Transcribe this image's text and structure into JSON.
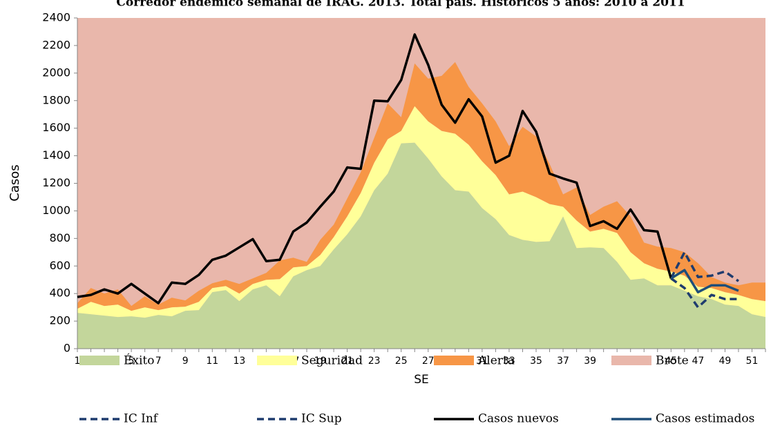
{
  "chart_data": {
    "type": "stacked-area-line",
    "title": "Corredor endémico semanal de IRAG. 2013. Total país. Históricos 5 años: 2010 a 2011",
    "x_label": "SE",
    "y_label": "Casos",
    "categories": [
      1,
      null,
      3,
      null,
      5,
      null,
      7,
      null,
      9,
      null,
      11,
      null,
      13,
      null,
      15,
      null,
      17,
      null,
      19,
      null,
      21,
      null,
      23,
      null,
      25,
      null,
      27,
      null,
      29,
      null,
      31,
      null,
      33,
      null,
      35,
      null,
      37,
      null,
      39,
      null,
      41,
      null,
      43,
      null,
      45,
      null,
      47,
      null,
      49,
      null,
      51,
      null
    ],
    "ylim": [
      0,
      2400
    ],
    "yticks": [
      0,
      200,
      400,
      600,
      800,
      1000,
      1200,
      1400,
      1600,
      1800,
      2000,
      2200,
      2400
    ],
    "areas": [
      {
        "name": "Éxito",
        "color": "#c3d69b",
        "values": [
          260,
          250,
          240,
          230,
          235,
          225,
          245,
          235,
          275,
          280,
          410,
          425,
          345,
          430,
          460,
          380,
          525,
          570,
          600,
          720,
          830,
          960,
          1150,
          1270,
          1490,
          1495,
          1380,
          1250,
          1150,
          1140,
          1020,
          940,
          825,
          790,
          775,
          780,
          960,
          730,
          735,
          730,
          630,
          500,
          510,
          460,
          460,
          420,
          380,
          360,
          320,
          310,
          250,
          230
        ]
      },
      {
        "name": "Seguridad",
        "color": "#ffff99",
        "values": [
          30,
          90,
          70,
          90,
          40,
          75,
          35,
          65,
          30,
          60,
          30,
          30,
          55,
          40,
          40,
          125,
          65,
          30,
          80,
          90,
          130,
          170,
          200,
          250,
          90,
          265,
          270,
          330,
          410,
          340,
          340,
          320,
          295,
          350,
          325,
          270,
          70,
          200,
          115,
          140,
          210,
          200,
          110,
          120,
          100,
          110,
          70,
          80,
          90,
          80,
          110,
          115
        ]
      },
      {
        "name": "Alerta",
        "color": "#f79646",
        "values": [
          40,
          100,
          90,
          110,
          35,
          80,
          40,
          70,
          45,
          80,
          35,
          45,
          70,
          40,
          50,
          135,
          70,
          30,
          110,
          90,
          130,
          150,
          180,
          260,
          100,
          310,
          310,
          400,
          520,
          420,
          420,
          390,
          350,
          470,
          440,
          290,
          90,
          240,
          120,
          160,
          230,
          260,
          150,
          160,
          170,
          170,
          170,
          80,
          70,
          70,
          120,
          135
        ]
      },
      {
        "name": "Brote",
        "color": "#e9b7ab"
      }
    ],
    "series": [
      {
        "name": "IC Inf",
        "color": "#1f3c6e",
        "dash": true,
        "values": [
          null,
          null,
          null,
          null,
          null,
          null,
          null,
          null,
          null,
          null,
          null,
          null,
          null,
          null,
          null,
          null,
          null,
          null,
          null,
          null,
          null,
          null,
          null,
          null,
          null,
          null,
          null,
          null,
          null,
          null,
          null,
          null,
          null,
          null,
          null,
          null,
          null,
          null,
          null,
          null,
          null,
          null,
          null,
          null,
          510,
          440,
          300,
          390,
          360,
          360,
          null,
          null
        ]
      },
      {
        "name": "IC Sup",
        "color": "#1f3c6e",
        "dash": true,
        "values": [
          null,
          null,
          null,
          null,
          null,
          null,
          null,
          null,
          null,
          null,
          null,
          null,
          null,
          null,
          null,
          null,
          null,
          null,
          null,
          null,
          null,
          null,
          null,
          null,
          null,
          null,
          null,
          null,
          null,
          null,
          null,
          null,
          null,
          null,
          null,
          null,
          null,
          null,
          null,
          null,
          null,
          null,
          null,
          null,
          510,
          700,
          520,
          530,
          560,
          490,
          null,
          null
        ]
      },
      {
        "name": "Casos nuevos",
        "color": "#000000",
        "dash": false,
        "values": [
          375,
          390,
          430,
          400,
          470,
          400,
          330,
          480,
          470,
          535,
          645,
          675,
          735,
          795,
          635,
          645,
          850,
          915,
          1030,
          1140,
          1315,
          1305,
          1800,
          1795,
          1950,
          2280,
          2060,
          1770,
          1640,
          1810,
          1685,
          1350,
          1400,
          1725,
          1575,
          1270,
          1235,
          1205,
          890,
          925,
          870,
          1010,
          860,
          850,
          510,
          null,
          null,
          null,
          null,
          null,
          null,
          null
        ]
      },
      {
        "name": "Casos estimados",
        "color": "#1f4e79",
        "dash": false,
        "values": [
          null,
          null,
          null,
          null,
          null,
          null,
          null,
          null,
          null,
          null,
          null,
          null,
          null,
          null,
          null,
          null,
          null,
          null,
          null,
          null,
          null,
          null,
          null,
          null,
          null,
          null,
          null,
          null,
          null,
          null,
          null,
          null,
          null,
          null,
          null,
          null,
          null,
          null,
          null,
          null,
          null,
          null,
          null,
          null,
          510,
          570,
          410,
          460,
          460,
          420,
          null,
          null
        ]
      }
    ]
  }
}
